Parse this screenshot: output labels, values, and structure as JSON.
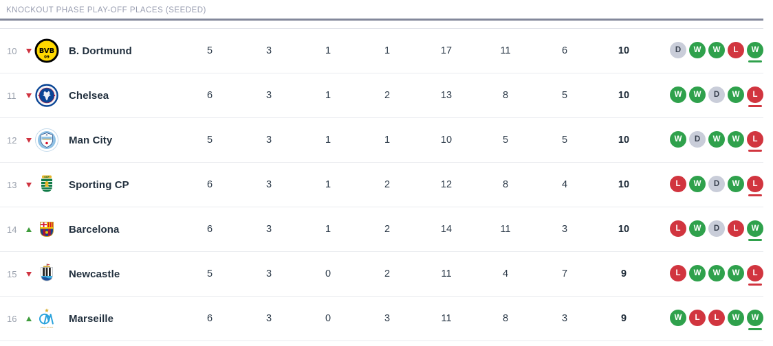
{
  "section_header": {
    "title": "KNOCKOUT PHASE PLAY-OFF PLACES (SEEDED)"
  },
  "colors": {
    "win": "#2fa14c",
    "loss": "#d1353f",
    "draw": "#c9cdd9",
    "moved_down_arrow": "#cf3340",
    "moved_up_arrow": "#3f9c3c",
    "section_bar": "#83889b",
    "position_text": "#9aa1ad"
  },
  "table": {
    "rows": [
      {
        "pos": "10",
        "movement": "down",
        "badge": "dortmund-badge",
        "name": "B. Dortmund",
        "played": "5",
        "won": "3",
        "drawn": "1",
        "lost": "1",
        "goals_for": "17",
        "goals_against": "11",
        "goal_diff": "6",
        "points": "10",
        "form": [
          "D",
          "W",
          "W",
          "L",
          "W"
        ]
      },
      {
        "pos": "11",
        "movement": "down",
        "badge": "chelsea-badge",
        "name": "Chelsea",
        "played": "6",
        "won": "3",
        "drawn": "1",
        "lost": "2",
        "goals_for": "13",
        "goals_against": "8",
        "goal_diff": "5",
        "points": "10",
        "form": [
          "W",
          "W",
          "D",
          "W",
          "L"
        ]
      },
      {
        "pos": "12",
        "movement": "down",
        "badge": "man-city-badge",
        "name": "Man City",
        "played": "5",
        "won": "3",
        "drawn": "1",
        "lost": "1",
        "goals_for": "10",
        "goals_against": "5",
        "goal_diff": "5",
        "points": "10",
        "form": [
          "W",
          "D",
          "W",
          "W",
          "L"
        ]
      },
      {
        "pos": "13",
        "movement": "down",
        "badge": "sporting-cp-badge",
        "name": "Sporting CP",
        "played": "6",
        "won": "3",
        "drawn": "1",
        "lost": "2",
        "goals_for": "12",
        "goals_against": "8",
        "goal_diff": "4",
        "points": "10",
        "form": [
          "L",
          "W",
          "D",
          "W",
          "L"
        ]
      },
      {
        "pos": "14",
        "movement": "up",
        "badge": "barcelona-badge",
        "name": "Barcelona",
        "played": "6",
        "won": "3",
        "drawn": "1",
        "lost": "2",
        "goals_for": "14",
        "goals_against": "11",
        "goal_diff": "3",
        "points": "10",
        "form": [
          "L",
          "W",
          "D",
          "L",
          "W"
        ]
      },
      {
        "pos": "15",
        "movement": "down",
        "badge": "newcastle-badge",
        "name": "Newcastle",
        "played": "5",
        "won": "3",
        "drawn": "0",
        "lost": "2",
        "goals_for": "11",
        "goals_against": "4",
        "goal_diff": "7",
        "points": "9",
        "form": [
          "L",
          "W",
          "W",
          "W",
          "L"
        ]
      },
      {
        "pos": "16",
        "movement": "up",
        "badge": "marseille-badge",
        "name": "Marseille",
        "played": "6",
        "won": "3",
        "drawn": "0",
        "lost": "3",
        "goals_for": "11",
        "goals_against": "8",
        "goal_diff": "3",
        "points": "9",
        "form": [
          "W",
          "L",
          "L",
          "W",
          "W"
        ]
      }
    ]
  }
}
